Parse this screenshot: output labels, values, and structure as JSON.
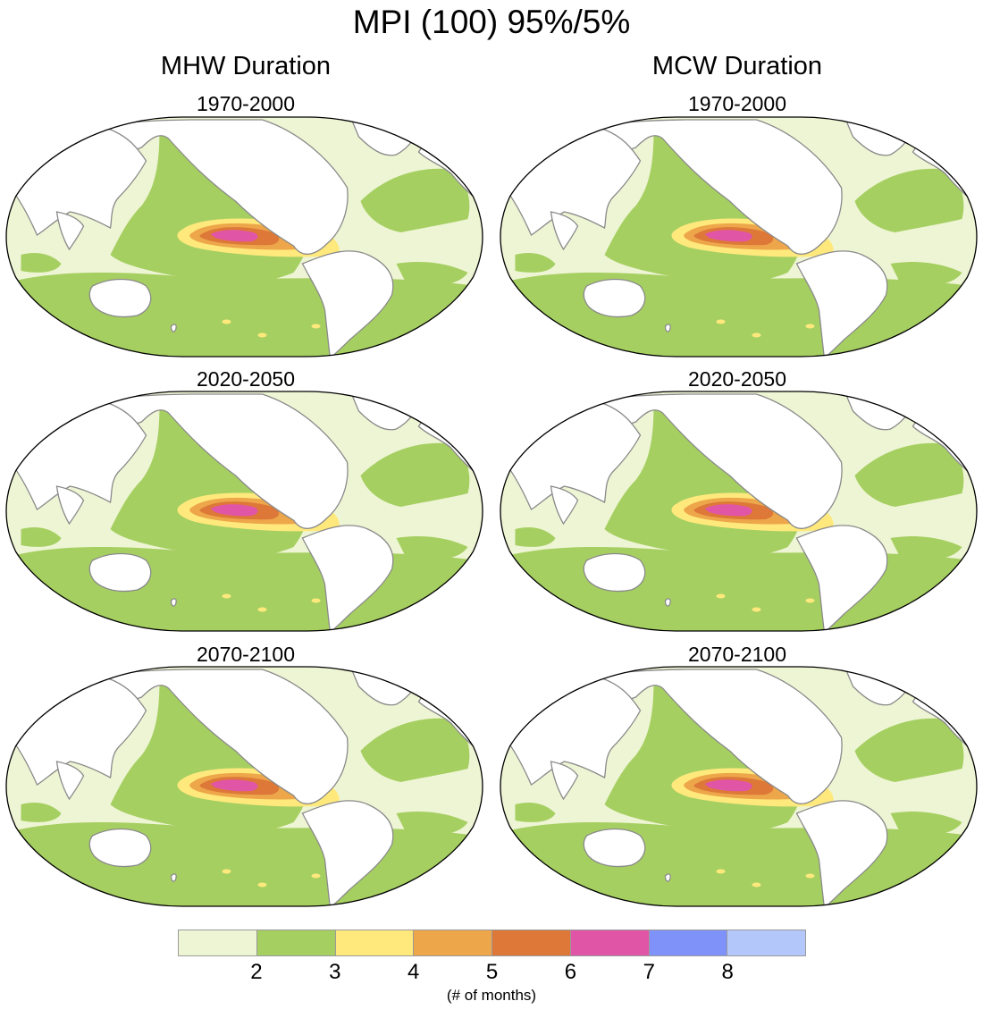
{
  "title": "MPI (100) 95%/5%",
  "chart_data": {
    "type": "heatmap",
    "projection": "Robinson",
    "units": "(# of months)",
    "columns": [
      {
        "title": "MHW Duration",
        "panels": [
          {
            "period": "1970-2000",
            "pacific_max_level": 7
          },
          {
            "period": "2020-2050",
            "pacific_max_level": 7
          },
          {
            "period": "2070-2100",
            "pacific_max_level": 6
          }
        ]
      },
      {
        "title": "MCW Duration",
        "panels": [
          {
            "period": "1970-2000",
            "pacific_max_level": 6
          },
          {
            "period": "2020-2050",
            "pacific_max_level": 6
          },
          {
            "period": "2070-2100",
            "pacific_max_level": 6
          }
        ]
      }
    ],
    "colorbar": {
      "ticks": [
        "2",
        "3",
        "4",
        "5",
        "6",
        "7",
        "8"
      ],
      "colors": [
        "#eef5d4",
        "#a6cf62",
        "#ffe97c",
        "#eda64a",
        "#dd7838",
        "#e155a6",
        "#7f92fa",
        "#b3c7fa"
      ]
    }
  }
}
